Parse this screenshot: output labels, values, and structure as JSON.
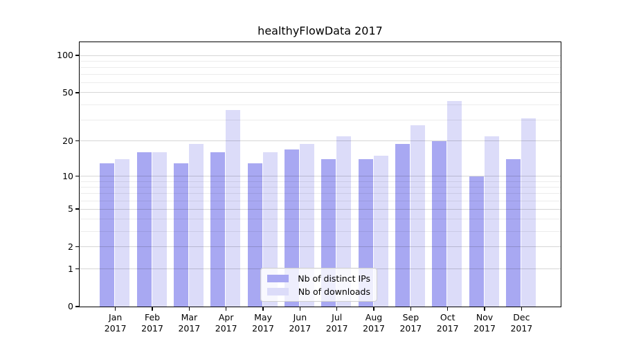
{
  "figure": {
    "title": "healthyFlowData 2017",
    "background": "#ffffff"
  },
  "chart_data": {
    "type": "bar",
    "title": "healthyFlowData 2017",
    "categories": [
      "Jan",
      "Feb",
      "Mar",
      "Apr",
      "May",
      "Jun",
      "Jul",
      "Aug",
      "Sep",
      "Oct",
      "Nov",
      "Dec"
    ],
    "x_year": "2017",
    "series": [
      {
        "name": "Nb of distinct IPs",
        "color": "#a8a8f2",
        "values": [
          13,
          16,
          13,
          16,
          13,
          17,
          14,
          14,
          19,
          20,
          10,
          14
        ]
      },
      {
        "name": "Nb of downloads",
        "color": "#dcdcf9",
        "values": [
          14,
          16,
          19,
          36,
          16,
          19,
          22,
          15,
          27,
          43,
          22,
          31
        ]
      }
    ],
    "yscale": "log1p",
    "ylim": [
      0,
      120
    ],
    "yticks": [
      0,
      1,
      2,
      5,
      10,
      20,
      50,
      100
    ],
    "minor_gridlines": [
      3,
      4,
      6,
      7,
      8,
      9,
      30,
      40,
      60,
      70,
      80,
      90
    ],
    "grid": true,
    "legend_location": "lower center",
    "colors": {
      "bar_distinct_ips": "#a8a8f2",
      "bar_downloads": "#dcdcf9",
      "grid_major": "#d4d4d4",
      "grid_minor": "#ececec",
      "axis": "#000000",
      "text": "#000000",
      "legend_border": "#cfcfcf"
    }
  }
}
